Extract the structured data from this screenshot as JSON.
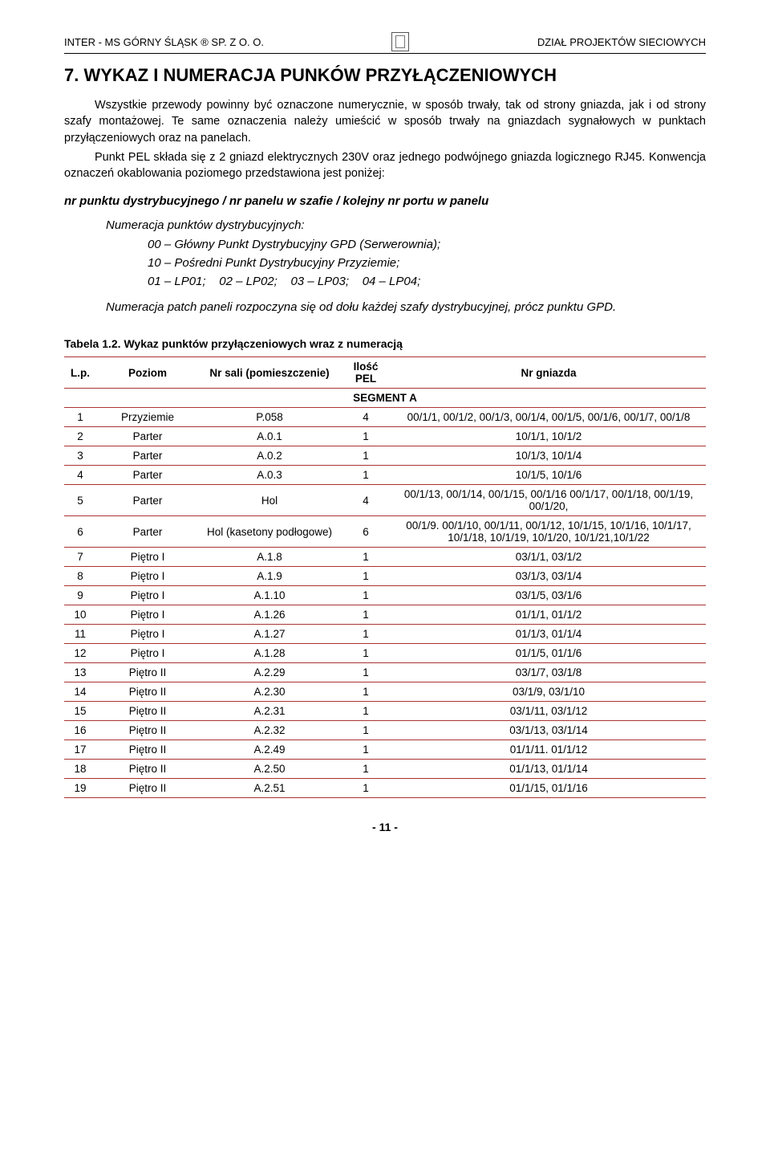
{
  "header": {
    "left": "INTER - MS  GÓRNY  ŚLĄSK ®  SP.  Z  O.  O.",
    "right": "DZIAŁ PROJEKTÓW SIECIOWYCH"
  },
  "section_title": "7. WYKAZ I NUMERACJA PUNKÓW PRZYŁĄCZENIOWYCH",
  "para1": "Wszystkie przewody powinny być oznaczone numerycznie, w sposób trwały, tak od strony gniazda, jak i od strony szafy montażowej. Te same oznaczenia należy umieścić w sposób trwały na gniazdach sygnałowych w punktach przyłączeniowych oraz na panelach.",
  "para2": "Punkt PEL składa się z 2 gniazd elektrycznych 230V oraz jednego podwójnego gniazda logicznego RJ45. Konwencja oznaczeń okablowania poziomego przedstawiona jest poniżej:",
  "bold_line": "nr punktu dystrybucyjnego / nr panelu w szafie / kolejny nr portu w panelu",
  "italic": {
    "l1": "Numeracja punktów dystrybucyjnych:",
    "l2": "00 – Główny Punkt Dystrybucyjny GPD (Serwerownia);",
    "l3": "10 – Pośredni Punkt Dystrybucyjny Przyziemie;",
    "l4": "01 – LP01;    02 – LP02;    03 – LP03;    04 – LP04;",
    "l5": "Numeracja patch paneli rozpoczyna się od dołu każdej szafy dystrybucyjnej, prócz punktu GPD."
  },
  "table": {
    "caption": "Tabela 1.2. Wykaz punktów przyłączeniowych wraz z numeracją",
    "columns": {
      "lp": "L.p.",
      "poziom": "Poziom",
      "sala": "Nr sali (pomieszczenie)",
      "ilosc": "Ilość PEL",
      "gniazdo": "Nr gniazda"
    },
    "segment_label": "SEGMENT A",
    "rows": [
      {
        "lp": "1",
        "poziom": "Przyziemie",
        "sala": "P.058",
        "ilosc": "4",
        "gniazdo": "00/1/1, 00/1/2, 00/1/3, 00/1/4, 00/1/5, 00/1/6, 00/1/7, 00/1/8"
      },
      {
        "lp": "2",
        "poziom": "Parter",
        "sala": "A.0.1",
        "ilosc": "1",
        "gniazdo": "10/1/1, 10/1/2"
      },
      {
        "lp": "3",
        "poziom": "Parter",
        "sala": "A.0.2",
        "ilosc": "1",
        "gniazdo": "10/1/3, 10/1/4"
      },
      {
        "lp": "4",
        "poziom": "Parter",
        "sala": "A.0.3",
        "ilosc": "1",
        "gniazdo": "10/1/5, 10/1/6"
      },
      {
        "lp": "5",
        "poziom": "Parter",
        "sala": "Hol",
        "ilosc": "4",
        "gniazdo": "00/1/13, 00/1/14, 00/1/15, 00/1/16 00/1/17, 00/1/18, 00/1/19, 00/1/20,"
      },
      {
        "lp": "6",
        "poziom": "Parter",
        "sala": "Hol (kasetony podłogowe)",
        "ilosc": "6",
        "gniazdo": "00/1/9. 00/1/10, 00/1/11, 00/1/12, 10/1/15, 10/1/16, 10/1/17, 10/1/18, 10/1/19, 10/1/20, 10/1/21,10/1/22"
      },
      {
        "lp": "7",
        "poziom": "Piętro I",
        "sala": "A.1.8",
        "ilosc": "1",
        "gniazdo": "03/1/1, 03/1/2"
      },
      {
        "lp": "8",
        "poziom": "Piętro I",
        "sala": "A.1.9",
        "ilosc": "1",
        "gniazdo": "03/1/3, 03/1/4"
      },
      {
        "lp": "9",
        "poziom": "Piętro I",
        "sala": "A.1.10",
        "ilosc": "1",
        "gniazdo": "03/1/5, 03/1/6"
      },
      {
        "lp": "10",
        "poziom": "Piętro I",
        "sala": "A.1.26",
        "ilosc": "1",
        "gniazdo": "01/1/1, 01/1/2"
      },
      {
        "lp": "11",
        "poziom": "Piętro I",
        "sala": "A.1.27",
        "ilosc": "1",
        "gniazdo": "01/1/3, 01/1/4"
      },
      {
        "lp": "12",
        "poziom": "Piętro I",
        "sala": "A.1.28",
        "ilosc": "1",
        "gniazdo": "01/1/5, 01/1/6"
      },
      {
        "lp": "13",
        "poziom": "Piętro II",
        "sala": "A.2.29",
        "ilosc": "1",
        "gniazdo": "03/1/7, 03/1/8"
      },
      {
        "lp": "14",
        "poziom": "Piętro II",
        "sala": "A.2.30",
        "ilosc": "1",
        "gniazdo": "03/1/9, 03/1/10"
      },
      {
        "lp": "15",
        "poziom": "Piętro II",
        "sala": "A.2.31",
        "ilosc": "1",
        "gniazdo": "03/1/11, 03/1/12"
      },
      {
        "lp": "16",
        "poziom": "Piętro II",
        "sala": "A.2.32",
        "ilosc": "1",
        "gniazdo": "03/1/13, 03/1/14"
      },
      {
        "lp": "17",
        "poziom": "Piętro II",
        "sala": "A.2.49",
        "ilosc": "1",
        "gniazdo": "01/1/11. 01/1/12"
      },
      {
        "lp": "18",
        "poziom": "Piętro II",
        "sala": "A.2.50",
        "ilosc": "1",
        "gniazdo": "01/1/13, 01/1/14"
      },
      {
        "lp": "19",
        "poziom": "Piętro II",
        "sala": "A.2.51",
        "ilosc": "1",
        "gniazdo": "01/1/15, 01/1/16"
      }
    ]
  },
  "footer": "- 11 -"
}
